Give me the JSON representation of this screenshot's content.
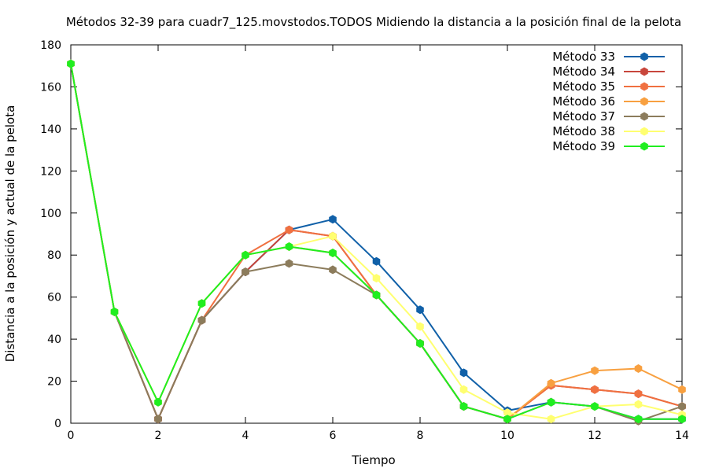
{
  "chart_data": {
    "type": "line",
    "title": "Métodos 32-39 para cuadr7_125.movstodos.TODOS Midiendo la distancia a la posición final de la pelota",
    "xlabel": "Tiempo",
    "ylabel": "Distancia a la posición y actual de la pelota",
    "xlim": [
      0,
      14
    ],
    "ylim": [
      0,
      180
    ],
    "x_ticks": [
      0,
      2,
      4,
      6,
      8,
      10,
      12,
      14
    ],
    "y_ticks": [
      0,
      20,
      40,
      60,
      80,
      100,
      120,
      140,
      160,
      180
    ],
    "grid": false,
    "legend_position": "top-right",
    "x": [
      0,
      1,
      2,
      3,
      4,
      5,
      6,
      7,
      8,
      9,
      10,
      11,
      12,
      13,
      14
    ],
    "series": [
      {
        "name": "Método 33",
        "color": "#1060a8",
        "values": [
          171,
          53,
          2,
          49,
          72,
          92,
          97,
          77,
          54,
          24,
          6,
          10,
          8,
          2,
          2
        ]
      },
      {
        "name": "Método 34",
        "color": "#c8463c",
        "values": [
          171,
          53,
          2,
          49,
          72,
          92,
          89,
          61,
          38,
          8,
          2,
          18,
          16,
          14,
          8
        ]
      },
      {
        "name": "Método 35",
        "color": "#f07040",
        "values": [
          171,
          53,
          2,
          49,
          80,
          92,
          89,
          61,
          38,
          8,
          2,
          18,
          16,
          14,
          8
        ]
      },
      {
        "name": "Método 36",
        "color": "#f8a040",
        "values": [
          171,
          53,
          10,
          57,
          80,
          84,
          81,
          61,
          38,
          8,
          2,
          19,
          25,
          26,
          16
        ]
      },
      {
        "name": "Método 37",
        "color": "#8c7c5c",
        "values": [
          171,
          53,
          2,
          49,
          72,
          76,
          73,
          61,
          38,
          8,
          2,
          10,
          8,
          1,
          8
        ]
      },
      {
        "name": "Método 38",
        "color": "#ffff70",
        "values": [
          171,
          53,
          10,
          57,
          80,
          84,
          89,
          69,
          46,
          16,
          5,
          2,
          8,
          9,
          4
        ]
      },
      {
        "name": "Método 39",
        "color": "#20ee20",
        "values": [
          171,
          53,
          10,
          57,
          80,
          84,
          81,
          61,
          38,
          8,
          2,
          10,
          8,
          2,
          2
        ]
      }
    ]
  }
}
